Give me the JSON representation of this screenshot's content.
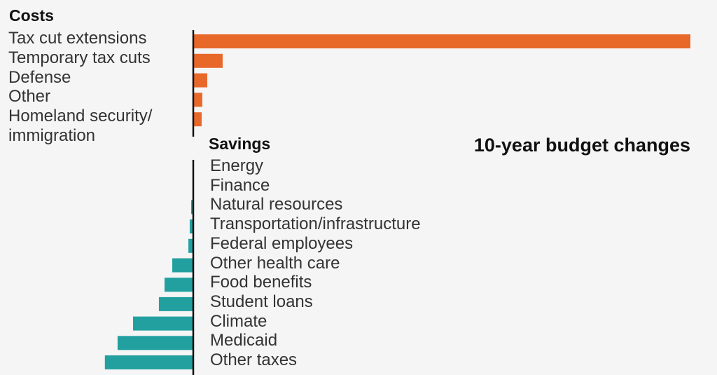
{
  "chart_data": {
    "type": "bar",
    "orientation": "horizontal",
    "title": "10-year budget changes",
    "note": "values estimated relative to bar lengths; no axis or value labels are printed",
    "groups": [
      {
        "name": "Costs",
        "color": "#e8682a",
        "direction": "right",
        "categories": [
          "Tax cut extensions",
          "Temporary tax cuts",
          "Defense",
          "Other",
          "Homeland security/ immigration"
        ],
        "values": [
          4500,
          266,
          127,
          82,
          76
        ]
      },
      {
        "name": "Savings",
        "color": "#22a09f",
        "direction": "left",
        "categories": [
          "Energy",
          "Finance",
          "Natural resources",
          "Transportation/infrastructure",
          "Federal employees",
          "Other health care",
          "Food benefits",
          "Student loans",
          "Climate",
          "Medicaid",
          "Other taxes"
        ],
        "values": [
          -3,
          -6,
          -19,
          -32,
          -44,
          -190,
          -260,
          -311,
          -545,
          -685,
          -800
        ]
      }
    ],
    "grid": false,
    "legend": "none"
  }
}
